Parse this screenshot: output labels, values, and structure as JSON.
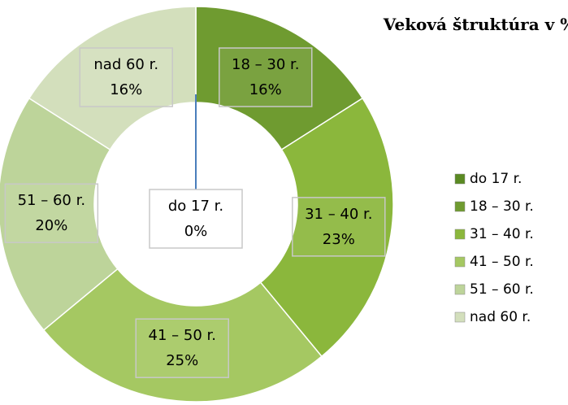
{
  "chart_data": {
    "type": "donut",
    "title": "Veková štruktúra v %",
    "categories": [
      "do 17 r.",
      "18 – 30 r.",
      "31 – 40 r.",
      "41 – 50 r.",
      "51 – 60 r.",
      "nad 60 r."
    ],
    "values": [
      0,
      16,
      23,
      25,
      20,
      16
    ],
    "value_labels": [
      "0%",
      "16%",
      "23%",
      "25%",
      "20%",
      "16%"
    ],
    "colors": [
      "#5a8a22",
      "#6f9b30",
      "#8bb73c",
      "#a5c862",
      "#bdd49a",
      "#d3dfbc"
    ],
    "legend": "right"
  }
}
